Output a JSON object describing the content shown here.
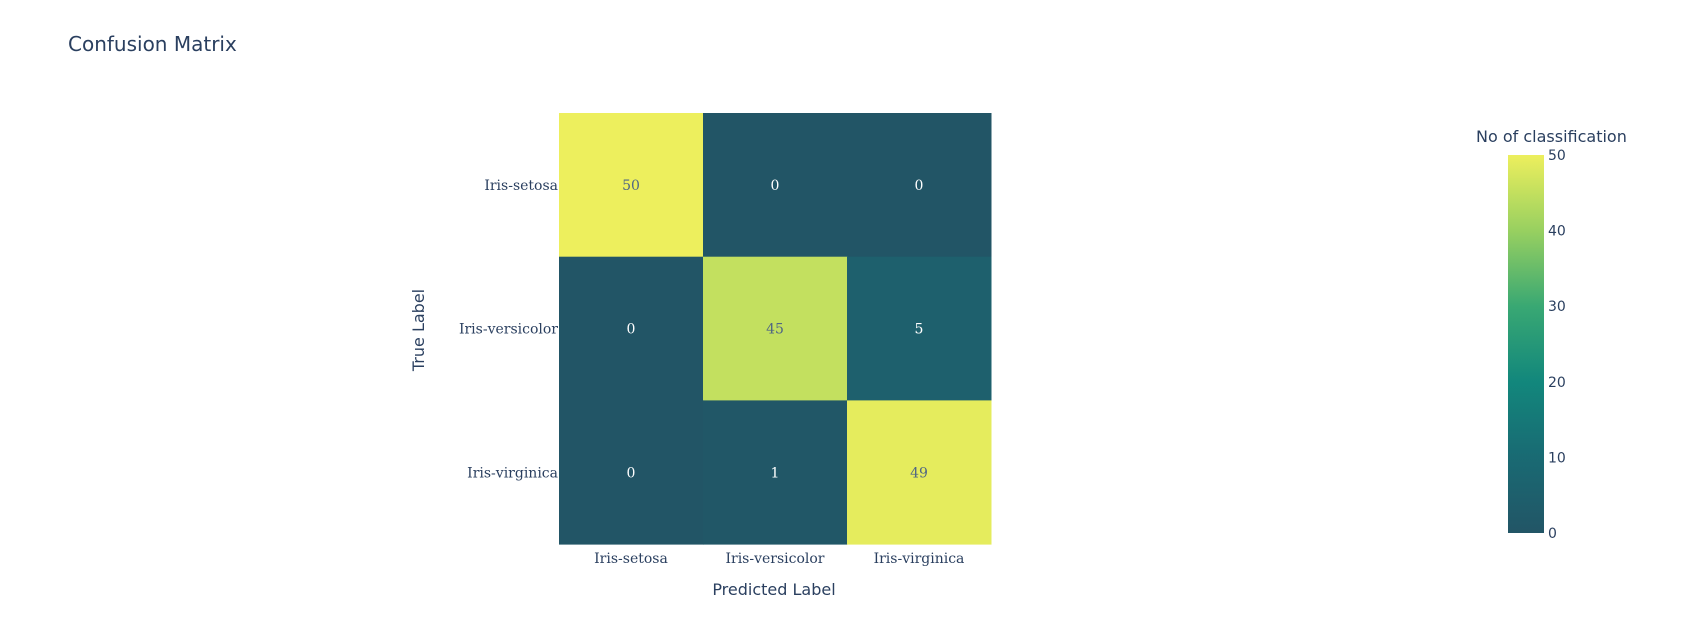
{
  "chart_data": {
    "type": "heatmap",
    "title": "Confusion Matrix",
    "xlabel": "Predicted Label",
    "ylabel": "True Label",
    "x_categories": [
      "Iris-setosa",
      "Iris-versicolor",
      "Iris-virginica"
    ],
    "y_categories": [
      "Iris-setosa",
      "Iris-versicolor",
      "Iris-virginica"
    ],
    "z": [
      [
        50,
        0,
        0
      ],
      [
        0,
        45,
        5
      ],
      [
        0,
        1,
        49
      ]
    ],
    "zrange": [
      0,
      50
    ],
    "colorscale": "Viridis",
    "colorbar": {
      "title": "No of classification",
      "ticks": [
        0,
        10,
        20,
        30,
        40,
        50
      ]
    },
    "grid": false,
    "legend": "right"
  },
  "colors": {
    "text_dark": "#2a3f5f",
    "text_on_dark": "#ffffff",
    "text_on_light": "#506784"
  }
}
